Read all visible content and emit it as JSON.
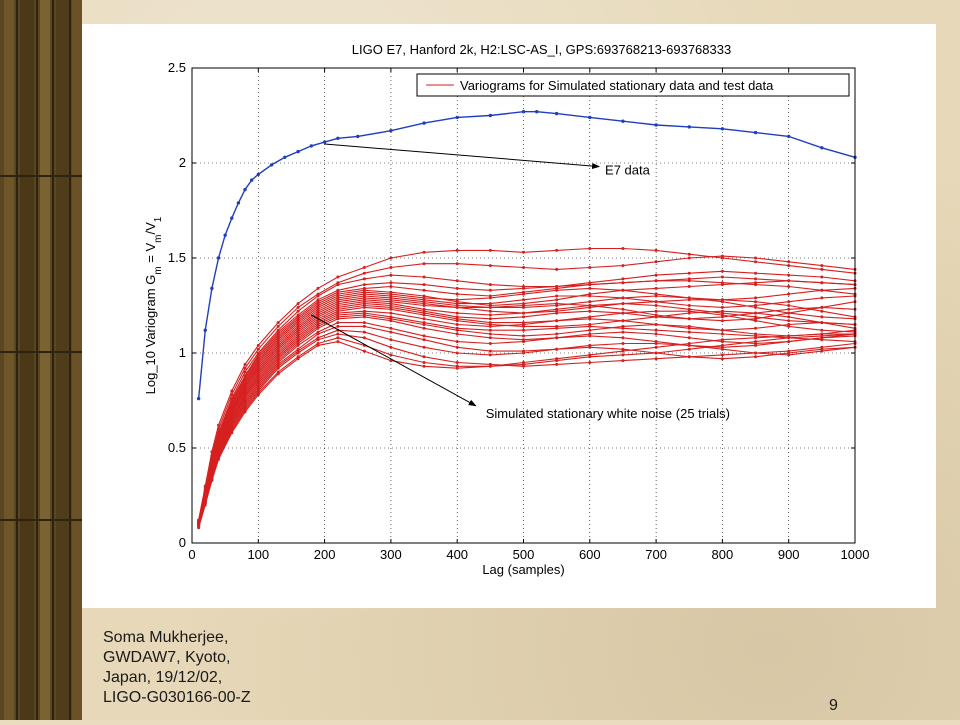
{
  "slide": {
    "author_lines": [
      "Soma Mukherjee,",
      "GWDAW7, Kyoto,",
      "Japan, 19/12/02,",
      "LIGO-G030166-00-Z"
    ],
    "number": "9"
  },
  "colors": {
    "e7": "#1f3fbf",
    "sim": "#d62020",
    "background": "#e6d8b8",
    "wood": "#5a4620"
  },
  "chart_data": {
    "type": "line",
    "title": "LIGO E7, Hanford 2k, H2:LSC-AS_I, GPS:693768213-693768333",
    "xlabel": "Lag (samples)",
    "ylabel": "Log_10 Variogram G",
    "ylabel_sub_m": "m",
    "ylabel_eq": " = V",
    "ylabel_sub_m2": "m",
    "ylabel_slash": "/V",
    "ylabel_sub_1": "1",
    "xlim": [
      0,
      1000
    ],
    "ylim": [
      0,
      2.5
    ],
    "xticks": [
      0,
      100,
      200,
      300,
      400,
      500,
      600,
      700,
      800,
      900,
      1000
    ],
    "yticks": [
      0,
      0.5,
      1,
      1.5,
      2,
      2.5
    ],
    "grid": true,
    "legend": {
      "position": "top-right",
      "label": "Variograms for Simulated stationary data and test data"
    },
    "annotations": [
      {
        "text": "E7 data",
        "points_to": [
          200,
          2.1
        ],
        "at": [
          620,
          1.96
        ]
      },
      {
        "text": "Simulated stationary white noise (25 trials)",
        "points_to": [
          180,
          1.2
        ],
        "at": [
          440,
          0.68
        ]
      }
    ],
    "series": [
      {
        "label": "E7 data",
        "x": [
          10,
          20,
          30,
          40,
          50,
          60,
          70,
          80,
          90,
          100,
          120,
          140,
          160,
          180,
          200,
          220,
          250,
          300,
          350,
          400,
          450,
          500,
          520,
          550,
          600,
          650,
          700,
          750,
          800,
          850,
          900,
          950,
          1000
        ],
        "y": [
          0.76,
          1.12,
          1.34,
          1.5,
          1.62,
          1.71,
          1.79,
          1.86,
          1.91,
          1.94,
          1.99,
          2.03,
          2.06,
          2.09,
          2.11,
          2.13,
          2.14,
          2.17,
          2.21,
          2.24,
          2.25,
          2.27,
          2.27,
          2.26,
          2.24,
          2.22,
          2.2,
          2.19,
          2.18,
          2.16,
          2.14,
          2.08,
          2.03
        ]
      }
    ],
    "sim_series_x": [
      10,
      20,
      30,
      40,
      60,
      80,
      100,
      130,
      160,
      190,
      220,
      260,
      300,
      350,
      400,
      450,
      500,
      550,
      600,
      650,
      700,
      750,
      800,
      850,
      900,
      950,
      1000
    ],
    "sim_series": [
      {
        "y": [
          0.12,
          0.3,
          0.48,
          0.62,
          0.8,
          0.94,
          1.04,
          1.16,
          1.26,
          1.34,
          1.4,
          1.45,
          1.5,
          1.53,
          1.54,
          1.54,
          1.53,
          1.54,
          1.55,
          1.55,
          1.54,
          1.52,
          1.5,
          1.48,
          1.46,
          1.44,
          1.42
        ]
      },
      {
        "y": [
          0.12,
          0.29,
          0.46,
          0.6,
          0.78,
          0.92,
          1.02,
          1.14,
          1.24,
          1.31,
          1.37,
          1.42,
          1.45,
          1.47,
          1.47,
          1.46,
          1.45,
          1.44,
          1.45,
          1.46,
          1.48,
          1.5,
          1.51,
          1.5,
          1.48,
          1.46,
          1.44
        ]
      },
      {
        "y": [
          0.11,
          0.28,
          0.45,
          0.58,
          0.76,
          0.9,
          1.0,
          1.12,
          1.22,
          1.3,
          1.36,
          1.39,
          1.41,
          1.4,
          1.38,
          1.36,
          1.35,
          1.35,
          1.36,
          1.37,
          1.38,
          1.39,
          1.4,
          1.39,
          1.38,
          1.37,
          1.36
        ]
      },
      {
        "y": [
          0.11,
          0.28,
          0.44,
          0.58,
          0.75,
          0.88,
          0.99,
          1.11,
          1.2,
          1.28,
          1.33,
          1.36,
          1.37,
          1.36,
          1.34,
          1.33,
          1.34,
          1.35,
          1.37,
          1.39,
          1.41,
          1.42,
          1.43,
          1.42,
          1.41,
          1.4,
          1.38
        ]
      },
      {
        "y": [
          0.11,
          0.27,
          0.43,
          0.57,
          0.74,
          0.87,
          0.98,
          1.1,
          1.19,
          1.27,
          1.32,
          1.34,
          1.35,
          1.33,
          1.31,
          1.3,
          1.32,
          1.34,
          1.36,
          1.37,
          1.38,
          1.38,
          1.37,
          1.36,
          1.35,
          1.33,
          1.31
        ]
      },
      {
        "y": [
          0.11,
          0.27,
          0.42,
          0.56,
          0.73,
          0.86,
          0.97,
          1.09,
          1.18,
          1.26,
          1.31,
          1.33,
          1.32,
          1.3,
          1.27,
          1.25,
          1.26,
          1.28,
          1.31,
          1.33,
          1.34,
          1.35,
          1.36,
          1.37,
          1.38,
          1.37,
          1.36
        ]
      },
      {
        "y": [
          0.11,
          0.26,
          0.42,
          0.55,
          0.72,
          0.85,
          0.96,
          1.08,
          1.17,
          1.25,
          1.3,
          1.32,
          1.31,
          1.29,
          1.28,
          1.29,
          1.31,
          1.33,
          1.34,
          1.33,
          1.31,
          1.29,
          1.28,
          1.29,
          1.31,
          1.33,
          1.34
        ]
      },
      {
        "y": [
          0.11,
          0.26,
          0.41,
          0.55,
          0.71,
          0.84,
          0.95,
          1.07,
          1.16,
          1.24,
          1.29,
          1.31,
          1.3,
          1.28,
          1.26,
          1.26,
          1.28,
          1.3,
          1.3,
          1.29,
          1.27,
          1.25,
          1.24,
          1.25,
          1.27,
          1.29,
          1.3
        ]
      },
      {
        "y": [
          0.1,
          0.26,
          0.41,
          0.54,
          0.7,
          0.83,
          0.94,
          1.06,
          1.15,
          1.23,
          1.28,
          1.3,
          1.29,
          1.27,
          1.25,
          1.24,
          1.24,
          1.25,
          1.27,
          1.29,
          1.3,
          1.29,
          1.27,
          1.24,
          1.21,
          1.19,
          1.18
        ]
      },
      {
        "y": [
          0.1,
          0.25,
          0.4,
          0.53,
          0.7,
          0.82,
          0.93,
          1.05,
          1.14,
          1.22,
          1.27,
          1.29,
          1.28,
          1.26,
          1.24,
          1.22,
          1.21,
          1.22,
          1.24,
          1.26,
          1.27,
          1.28,
          1.28,
          1.27,
          1.25,
          1.22,
          1.19
        ]
      },
      {
        "y": [
          0.1,
          0.25,
          0.4,
          0.53,
          0.69,
          0.82,
          0.92,
          1.04,
          1.13,
          1.21,
          1.26,
          1.28,
          1.27,
          1.25,
          1.24,
          1.24,
          1.25,
          1.26,
          1.25,
          1.23,
          1.2,
          1.18,
          1.17,
          1.18,
          1.21,
          1.24,
          1.27
        ]
      },
      {
        "y": [
          0.1,
          0.25,
          0.39,
          0.52,
          0.68,
          0.81,
          0.91,
          1.03,
          1.12,
          1.2,
          1.25,
          1.27,
          1.26,
          1.23,
          1.21,
          1.2,
          1.21,
          1.23,
          1.25,
          1.26,
          1.25,
          1.23,
          1.21,
          1.19,
          1.17,
          1.16,
          1.15
        ]
      },
      {
        "y": [
          0.1,
          0.24,
          0.39,
          0.52,
          0.68,
          0.8,
          0.9,
          1.02,
          1.11,
          1.19,
          1.24,
          1.26,
          1.25,
          1.22,
          1.19,
          1.18,
          1.19,
          1.21,
          1.22,
          1.21,
          1.19,
          1.18,
          1.19,
          1.21,
          1.23,
          1.24,
          1.23
        ]
      },
      {
        "y": [
          0.1,
          0.24,
          0.38,
          0.51,
          0.67,
          0.79,
          0.89,
          1.01,
          1.1,
          1.18,
          1.23,
          1.25,
          1.24,
          1.21,
          1.18,
          1.16,
          1.16,
          1.17,
          1.19,
          1.21,
          1.22,
          1.22,
          1.2,
          1.17,
          1.14,
          1.12,
          1.11
        ]
      },
      {
        "y": [
          0.1,
          0.24,
          0.38,
          0.5,
          0.66,
          0.78,
          0.88,
          1.0,
          1.09,
          1.17,
          1.22,
          1.24,
          1.23,
          1.2,
          1.17,
          1.15,
          1.14,
          1.14,
          1.15,
          1.17,
          1.19,
          1.21,
          1.22,
          1.21,
          1.19,
          1.16,
          1.13
        ]
      },
      {
        "y": [
          0.1,
          0.23,
          0.37,
          0.5,
          0.65,
          0.77,
          0.87,
          0.99,
          1.08,
          1.16,
          1.21,
          1.22,
          1.21,
          1.18,
          1.15,
          1.14,
          1.15,
          1.17,
          1.18,
          1.17,
          1.15,
          1.13,
          1.12,
          1.13,
          1.15,
          1.16,
          1.15
        ]
      },
      {
        "y": [
          0.1,
          0.23,
          0.37,
          0.49,
          0.65,
          0.77,
          0.86,
          0.98,
          1.07,
          1.15,
          1.2,
          1.21,
          1.19,
          1.16,
          1.13,
          1.12,
          1.12,
          1.13,
          1.14,
          1.13,
          1.12,
          1.11,
          1.1,
          1.09,
          1.08,
          1.07,
          1.06
        ]
      },
      {
        "y": [
          0.1,
          0.23,
          0.36,
          0.49,
          0.64,
          0.76,
          0.85,
          0.97,
          1.06,
          1.14,
          1.19,
          1.2,
          1.18,
          1.15,
          1.12,
          1.1,
          1.09,
          1.1,
          1.12,
          1.14,
          1.15,
          1.14,
          1.12,
          1.1,
          1.09,
          1.1,
          1.12
        ]
      },
      {
        "y": [
          0.09,
          0.22,
          0.36,
          0.48,
          0.63,
          0.75,
          0.84,
          0.96,
          1.05,
          1.13,
          1.18,
          1.19,
          1.17,
          1.13,
          1.1,
          1.08,
          1.07,
          1.08,
          1.1,
          1.11,
          1.1,
          1.08,
          1.06,
          1.05,
          1.06,
          1.08,
          1.1
        ]
      },
      {
        "y": [
          0.09,
          0.22,
          0.35,
          0.47,
          0.62,
          0.74,
          0.83,
          0.95,
          1.04,
          1.11,
          1.16,
          1.16,
          1.13,
          1.09,
          1.06,
          1.05,
          1.06,
          1.08,
          1.09,
          1.08,
          1.06,
          1.04,
          1.03,
          1.04,
          1.06,
          1.08,
          1.09
        ]
      },
      {
        "y": [
          0.09,
          0.22,
          0.35,
          0.47,
          0.62,
          0.73,
          0.82,
          0.94,
          1.02,
          1.1,
          1.14,
          1.14,
          1.11,
          1.07,
          1.03,
          1.01,
          1.01,
          1.02,
          1.04,
          1.05,
          1.05,
          1.04,
          1.02,
          1.0,
          0.99,
          1.01,
          1.03
        ]
      },
      {
        "y": [
          0.09,
          0.21,
          0.34,
          0.46,
          0.61,
          0.72,
          0.81,
          0.93,
          1.01,
          1.08,
          1.12,
          1.11,
          1.07,
          1.03,
          1.0,
          0.99,
          1.0,
          1.02,
          1.03,
          1.02,
          1.0,
          0.98,
          0.97,
          0.98,
          1.0,
          1.02,
          1.03
        ]
      },
      {
        "y": [
          0.09,
          0.21,
          0.34,
          0.46,
          0.6,
          0.71,
          0.8,
          0.92,
          1.0,
          1.07,
          1.1,
          1.08,
          1.03,
          0.98,
          0.95,
          0.94,
          0.93,
          0.94,
          0.95,
          0.96,
          0.97,
          0.98,
          0.99,
          1.0,
          1.01,
          1.03,
          1.05
        ]
      },
      {
        "y": [
          0.09,
          0.21,
          0.33,
          0.45,
          0.59,
          0.7,
          0.79,
          0.9,
          0.98,
          1.05,
          1.08,
          1.04,
          0.99,
          0.95,
          0.93,
          0.93,
          0.94,
          0.96,
          0.98,
          0.99,
          1.0,
          1.02,
          1.04,
          1.06,
          1.08,
          1.09,
          1.1
        ]
      },
      {
        "y": [
          0.08,
          0.2,
          0.33,
          0.44,
          0.58,
          0.69,
          0.78,
          0.89,
          0.97,
          1.04,
          1.06,
          1.01,
          0.96,
          0.93,
          0.92,
          0.93,
          0.95,
          0.97,
          0.99,
          1.01,
          1.03,
          1.05,
          1.07,
          1.08,
          1.09,
          1.1,
          1.1
        ]
      }
    ]
  }
}
